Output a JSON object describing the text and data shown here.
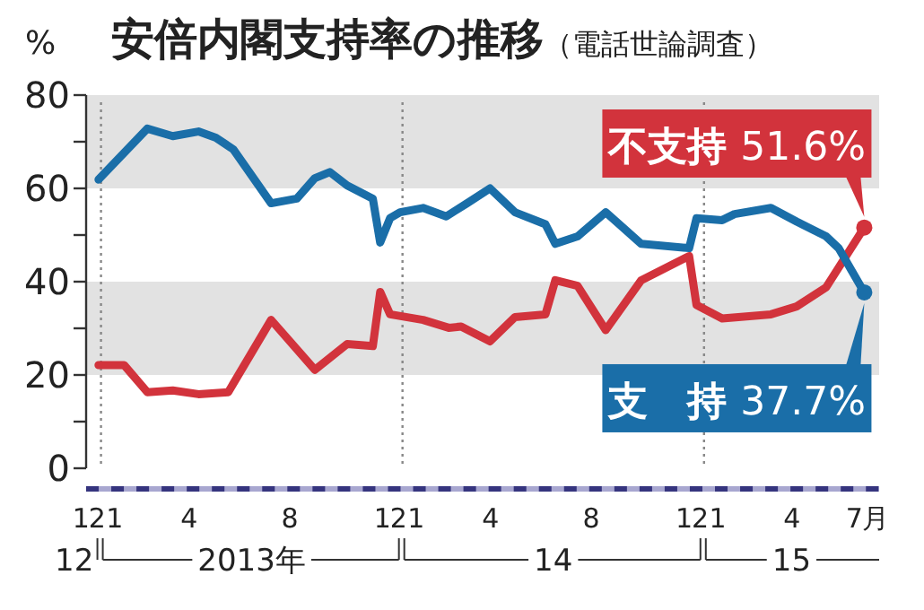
{
  "chart_data": {
    "type": "line",
    "title": "安倍内閣支持率の推移",
    "subtitle": "（電話世論調査）",
    "ylabel": "%",
    "xlim": [
      "2012-11-28",
      "2015-07-16"
    ],
    "ylim": [
      0,
      80
    ],
    "xticks": [
      {
        "value": "2012-12",
        "label": "12"
      },
      {
        "value": "2013-01",
        "label": "1"
      },
      {
        "value": "2013-04",
        "label": "4"
      },
      {
        "value": "2013-08",
        "label": "8"
      },
      {
        "value": "2013-12",
        "label": "12"
      },
      {
        "value": "2014-01",
        "label": "1"
      },
      {
        "value": "2014-04",
        "label": "4"
      },
      {
        "value": "2014-08",
        "label": "8"
      },
      {
        "value": "2014-12",
        "label": "12"
      },
      {
        "value": "2015-01",
        "label": "1"
      },
      {
        "value": "2015-04",
        "label": "4"
      },
      {
        "value": "2015-07",
        "label": "7月"
      }
    ],
    "yticks": [
      0,
      {
        "value": 10,
        "label": null
      },
      20,
      {
        "value": 30,
        "label": null
      },
      40,
      {
        "value": 50,
        "label": null
      },
      60,
      {
        "value": 70,
        "label": null
      },
      80
    ],
    "bands": [
      {
        "axis": "y",
        "from": 20,
        "to": 40,
        "color": "#e2e2e2"
      },
      {
        "axis": "y",
        "from": 60,
        "to": 80,
        "color": "#e2e2e2"
      }
    ],
    "ref_lines": [
      {
        "axis": "x",
        "value": "2012-12-16",
        "line_style": "dotted",
        "color": "#888888"
      },
      {
        "axis": "x",
        "value": "2013-12-16",
        "line_style": "dotted",
        "color": "#888888"
      },
      {
        "axis": "x",
        "value": "2014-12-16",
        "line_style": "dotted",
        "color": "#888888"
      }
    ],
    "annotations": [
      "12",
      "2013年",
      "14",
      "15"
    ],
    "series": [
      {
        "name": "不支持",
        "color": "#d2333c",
        "x": [
          "2012-12-13",
          "2013-01-13",
          "2013-02-10",
          "2013-03-13",
          "2013-04-13",
          "2013-05-19",
          "2013-07-10",
          "2013-09-01",
          "2013-10-10",
          "2013-11-10",
          "2013-11-19",
          "2013-12-01",
          "2014-01-10",
          "2014-02-10",
          "2014-02-25",
          "2014-04-01",
          "2014-05-01",
          "2014-06-07",
          "2014-06-19",
          "2014-07-16",
          "2014-08-19",
          "2014-10-01",
          "2014-11-28",
          "2014-12-07",
          "2015-01-07",
          "2015-03-07",
          "2015-04-07",
          "2015-05-13",
          "2015-06-28"
        ],
        "values": [
          22.1,
          22.1,
          16.3,
          16.7,
          15.9,
          16.3,
          31.8,
          21.1,
          26.6,
          26.2,
          37.8,
          33.0,
          31.8,
          30.1,
          30.4,
          27.2,
          32.4,
          33.0,
          40.3,
          39.1,
          29.6,
          40.3,
          45.5,
          35.0,
          32.1,
          33.0,
          34.7,
          38.8,
          51.6
        ],
        "value_labels": [
          null,
          null,
          null,
          null,
          null,
          null,
          null,
          null,
          null,
          null,
          null,
          null,
          null,
          null,
          null,
          null,
          null,
          null,
          null,
          null,
          null,
          null,
          null,
          null,
          null,
          null,
          null,
          null,
          "51.6%"
        ]
      },
      {
        "name": "支　持",
        "color": "#1a6ea8",
        "x": [
          "2012-12-13",
          "2013-02-10",
          "2013-03-13",
          "2013-04-13",
          "2013-05-04",
          "2013-05-25",
          "2013-07-10",
          "2013-08-10",
          "2013-09-01",
          "2013-09-19",
          "2013-10-10",
          "2013-11-10",
          "2013-11-19",
          "2013-12-01",
          "2013-12-13",
          "2014-01-10",
          "2014-02-07",
          "2014-03-04",
          "2014-04-01",
          "2014-05-01",
          "2014-06-07",
          "2014-06-19",
          "2014-07-16",
          "2014-08-19",
          "2014-10-01",
          "2014-11-28",
          "2014-12-07",
          "2015-01-07",
          "2015-01-22",
          "2015-03-07",
          "2015-04-07",
          "2015-05-13",
          "2015-05-28",
          "2015-06-28"
        ],
        "values": [
          61.9,
          72.8,
          71.2,
          72.2,
          70.9,
          68.4,
          56.8,
          57.8,
          62.2,
          63.5,
          60.6,
          57.8,
          48.4,
          53.6,
          54.9,
          55.8,
          54.0,
          56.8,
          60.0,
          54.9,
          52.3,
          48.1,
          49.7,
          54.9,
          48.1,
          47.2,
          53.6,
          53.2,
          54.5,
          55.8,
          52.9,
          49.7,
          47.2,
          37.7
        ],
        "value_labels": [
          null,
          null,
          null,
          null,
          null,
          null,
          null,
          null,
          null,
          null,
          null,
          null,
          null,
          null,
          null,
          null,
          null,
          null,
          null,
          null,
          null,
          null,
          null,
          null,
          null,
          null,
          null,
          null,
          null,
          null,
          null,
          null,
          null,
          "37.7%"
        ]
      }
    ]
  }
}
